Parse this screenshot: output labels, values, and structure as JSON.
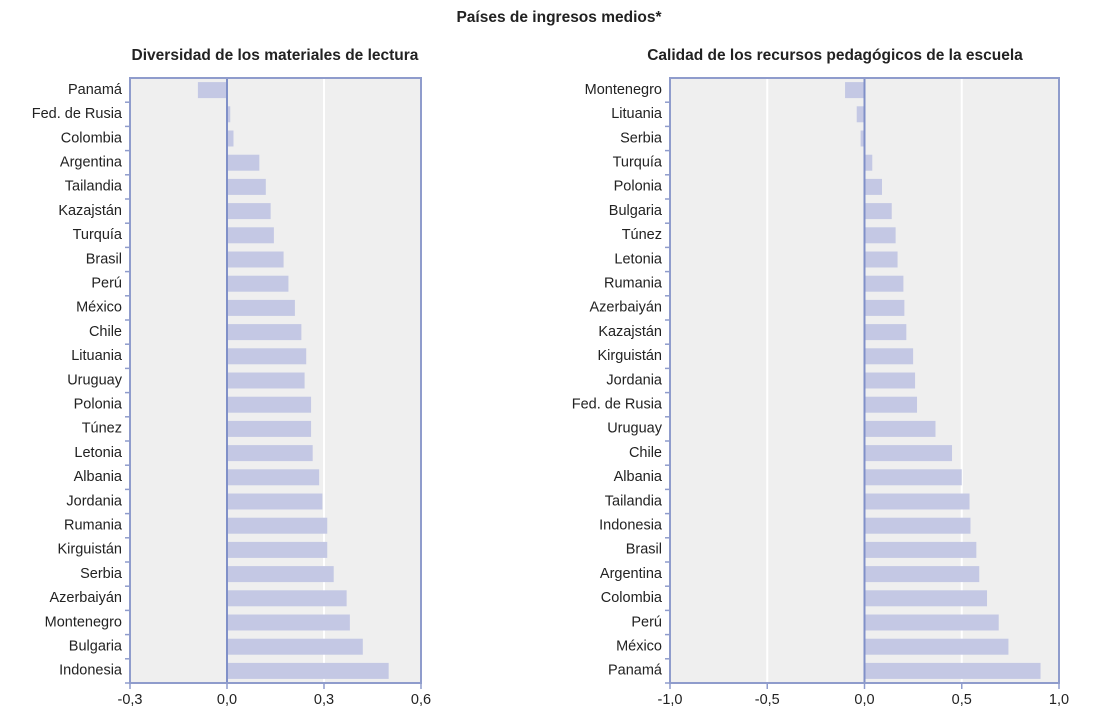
{
  "title": "Países de ingresos medios*",
  "chart_data": [
    {
      "type": "barh",
      "title": "Diversidad de los materiales de lectura",
      "color": "#c4c8e4",
      "grid": true,
      "categories": [
        "Panamá",
        "Fed. de Rusia",
        "Colombia",
        "Argentina",
        "Tailandia",
        "Kazajstán",
        "Turquía",
        "Brasil",
        "Perú",
        "México",
        "Chile",
        "Lituania",
        "Uruguay",
        "Polonia",
        "Túnez",
        "Letonia",
        "Albania",
        "Jordania",
        "Rumania",
        "Kirguistán",
        "Serbia",
        "Azerbaiyán",
        "Montenegro",
        "Bulgaria",
        "Indonesia"
      ],
      "values": [
        -0.09,
        0.01,
        0.02,
        0.1,
        0.12,
        0.135,
        0.145,
        0.175,
        0.19,
        0.21,
        0.23,
        0.245,
        0.24,
        0.26,
        0.26,
        0.265,
        0.285,
        0.295,
        0.31,
        0.31,
        0.33,
        0.37,
        0.38,
        0.42,
        0.5
      ],
      "xlim": [
        -0.3,
        0.6
      ],
      "xticks": [
        {
          "value": -0.3,
          "label": "-0,3"
        },
        {
          "value": 0,
          "label": "0,0"
        },
        {
          "value": 0.3,
          "label": "0,3"
        },
        {
          "value": 0.6,
          "label": "0,6"
        }
      ]
    },
    {
      "type": "barh",
      "title": "Calidad de los recursos pedagógicos de la escuela",
      "color": "#c4c8e4",
      "grid": true,
      "categories": [
        "Montenegro",
        "Lituania",
        "Serbia",
        "Turquía",
        "Polonia",
        "Bulgaria",
        "Túnez",
        "Letonia",
        "Rumania",
        "Azerbaiyán",
        "Kazajstán",
        "Kirguistán",
        "Jordania",
        "Fed. de Rusia",
        "Uruguay",
        "Chile",
        "Albania",
        "Tailandia",
        "Indonesia",
        "Brasil",
        "Argentina",
        "Colombia",
        "Perú",
        "México",
        "Panamá"
      ],
      "values": [
        -0.1,
        -0.04,
        -0.02,
        0.04,
        0.09,
        0.14,
        0.16,
        0.17,
        0.2,
        0.205,
        0.215,
        0.25,
        0.26,
        0.27,
        0.365,
        0.45,
        0.5,
        0.54,
        0.545,
        0.575,
        0.59,
        0.63,
        0.69,
        0.74,
        0.905
      ],
      "xlim": [
        -1.0,
        1.0
      ],
      "xticks": [
        {
          "value": -1.0,
          "label": "-1,0"
        },
        {
          "value": -0.5,
          "label": "-0,5"
        },
        {
          "value": 0,
          "label": "0,0"
        },
        {
          "value": 0.5,
          "label": "0,5"
        },
        {
          "value": 1.0,
          "label": "1,0"
        }
      ]
    }
  ]
}
